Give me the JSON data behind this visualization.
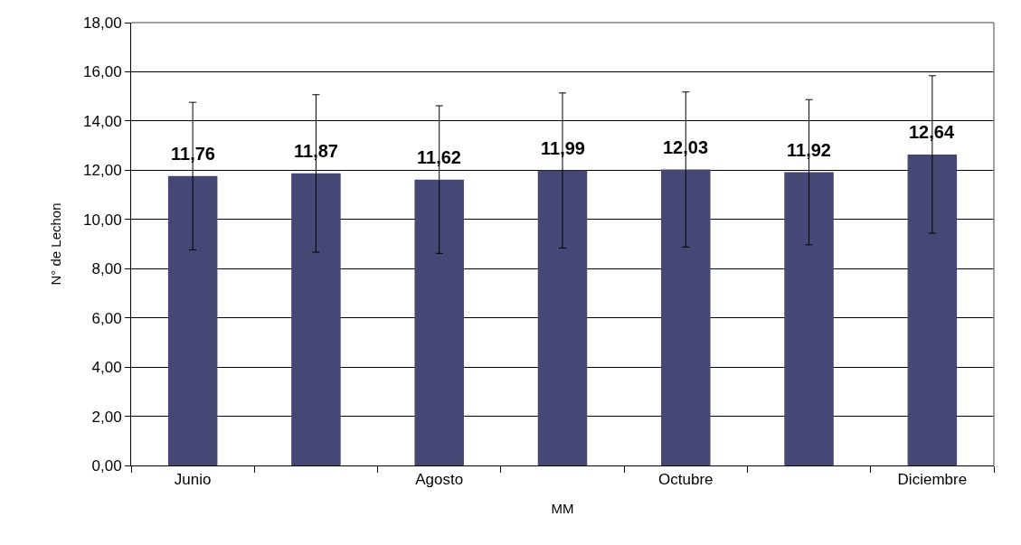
{
  "chart_data": {
    "type": "bar",
    "xlabel": "MM",
    "ylabel": "N° de Lechon",
    "categories": [
      "Junio",
      null,
      "Agosto",
      null,
      "Octubre",
      null,
      "Diciembre"
    ],
    "values": [
      11.76,
      11.87,
      11.62,
      11.99,
      12.03,
      11.92,
      12.64
    ],
    "value_labels": [
      "11,76",
      "11,87",
      "11,62",
      "11,99",
      "12,03",
      "11,92",
      "12,64"
    ],
    "errors": [
      3.0,
      3.2,
      3.0,
      3.15,
      3.15,
      2.95,
      3.2
    ],
    "color": "#464775",
    "ylim": [
      0,
      18
    ],
    "yticks": [
      {
        "value": 0,
        "label": "0,00"
      },
      {
        "value": 2,
        "label": "2,00"
      },
      {
        "value": 4,
        "label": "4,00"
      },
      {
        "value": 6,
        "label": "6,00"
      },
      {
        "value": 8,
        "label": "8,00"
      },
      {
        "value": 10,
        "label": "10,00"
      },
      {
        "value": 12,
        "label": "12,00"
      },
      {
        "value": 14,
        "label": "14,00"
      },
      {
        "value": 16,
        "label": "16,00"
      },
      {
        "value": 18,
        "label": "18,00"
      }
    ],
    "grid": "y"
  }
}
